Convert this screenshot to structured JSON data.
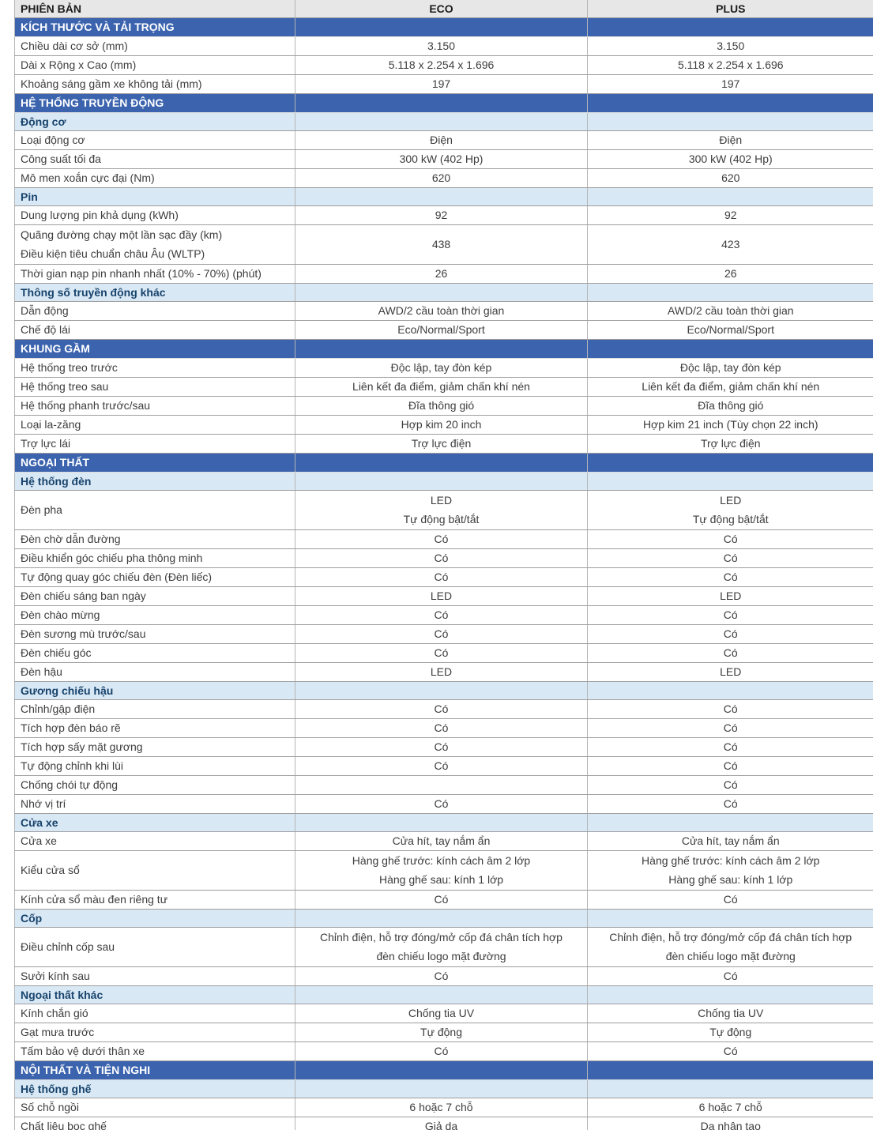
{
  "colors": {
    "section_header_bg": "#3b63ae",
    "section_header_text": "#ffffff",
    "subsection_bg": "#d9e8f5",
    "subsection_text": "#17436b",
    "header_row_bg": "#e7e7e7",
    "row_text": "#3d3d3d",
    "grid_line": "#9e9e9e"
  },
  "table": {
    "columns": [
      "PHIÊN BẢN",
      "ECO",
      "PLUS"
    ],
    "rows": [
      {
        "type": "section",
        "label": "KÍCH THƯỚC VÀ TẢI TRỌNG"
      },
      {
        "type": "data",
        "label": "Chiều dài cơ sở (mm)",
        "eco": "3.150",
        "plus": "3.150"
      },
      {
        "type": "data",
        "label": "Dài x Rộng x Cao (mm)",
        "eco": "5.118 x 2.254 x 1.696",
        "plus": "5.118 x 2.254 x 1.696"
      },
      {
        "type": "data",
        "label": "Khoảng sáng gầm xe không tải (mm)",
        "eco": "197",
        "plus": "197"
      },
      {
        "type": "section",
        "label": "HỆ THỐNG TRUYỀN ĐỘNG"
      },
      {
        "type": "subsection",
        "label": "Động cơ"
      },
      {
        "type": "data",
        "label": "Loại động cơ",
        "eco": "Điện",
        "plus": "Điện"
      },
      {
        "type": "data",
        "label": "Công suất tối đa",
        "eco": "300 kW (402 Hp)",
        "plus": "300 kW (402 Hp)"
      },
      {
        "type": "data",
        "label": "Mô men xoắn cực đại (Nm)",
        "eco": "620",
        "plus": "620"
      },
      {
        "type": "subsection",
        "label": "Pin"
      },
      {
        "type": "data",
        "label": "Dung lượng pin khả dụng (kWh)",
        "eco": "92",
        "plus": "92"
      },
      {
        "type": "data",
        "label": [
          "Quãng đường chạy một lần sạc đầy (km)",
          "Điều kiện tiêu chuẩn châu Âu (WLTP)"
        ],
        "eco": "438",
        "plus": "423"
      },
      {
        "type": "data",
        "label": "Thời gian nạp pin nhanh nhất (10% - 70%) (phút)",
        "eco": "26",
        "plus": "26"
      },
      {
        "type": "subsection",
        "label": "Thông số truyền động khác"
      },
      {
        "type": "data",
        "label": "Dẫn động",
        "eco": "AWD/2 cầu toàn thời gian",
        "plus": "AWD/2 cầu toàn thời gian"
      },
      {
        "type": "data",
        "label": "Chế độ lái",
        "eco": "Eco/Normal/Sport",
        "plus": "Eco/Normal/Sport"
      },
      {
        "type": "section",
        "label": "KHUNG GẦM"
      },
      {
        "type": "data",
        "label": "Hệ thống treo trước",
        "eco": "Độc lập, tay đòn kép",
        "plus": "Độc lập, tay đòn kép"
      },
      {
        "type": "data",
        "label": "Hệ thống treo sau",
        "eco": "Liên kết đa điểm, giảm chấn khí nén",
        "plus": "Liên kết đa điểm, giảm chấn khí nén"
      },
      {
        "type": "data",
        "label": "Hệ thống phanh trước/sau",
        "eco": "Đĩa thông gió",
        "plus": "Đĩa thông gió"
      },
      {
        "type": "data",
        "label": "Loại la-zăng",
        "eco": "Hợp kim 20 inch",
        "plus": "Hợp kim 21 inch (Tùy chọn 22 inch)"
      },
      {
        "type": "data",
        "label": "Trợ lực lái",
        "eco": "Trợ lực điện",
        "plus": "Trợ lực điện"
      },
      {
        "type": "section",
        "label": "NGOẠI THẤT"
      },
      {
        "type": "subsection",
        "label": "Hệ thống đèn"
      },
      {
        "type": "data",
        "label": "Đèn pha",
        "eco": [
          "LED",
          "Tự động bật/tắt"
        ],
        "plus": [
          "LED",
          "Tự động bật/tắt"
        ]
      },
      {
        "type": "data",
        "label": "Đèn chờ dẫn đường",
        "eco": "Có",
        "plus": "Có"
      },
      {
        "type": "data",
        "label": "Điều khiển góc chiếu pha thông minh",
        "eco": "Có",
        "plus": "Có"
      },
      {
        "type": "data",
        "label": "Tự động quay góc chiếu đèn (Đèn liếc)",
        "eco": "Có",
        "plus": "Có"
      },
      {
        "type": "data",
        "label": "Đèn chiếu sáng ban ngày",
        "eco": "LED",
        "plus": "LED"
      },
      {
        "type": "data",
        "label": "Đèn chào mừng",
        "eco": "Có",
        "plus": "Có"
      },
      {
        "type": "data",
        "label": "Đèn sương mù trước/sau",
        "eco": "Có",
        "plus": "Có"
      },
      {
        "type": "data",
        "label": "Đèn chiếu góc",
        "eco": "Có",
        "plus": "Có"
      },
      {
        "type": "data",
        "label": "Đèn hậu",
        "eco": "LED",
        "plus": "LED"
      },
      {
        "type": "subsection",
        "label": "Gương chiếu hậu"
      },
      {
        "type": "data",
        "label": "Chỉnh/gập điện",
        "eco": "Có",
        "plus": "Có"
      },
      {
        "type": "data",
        "label": "Tích hợp đèn báo rẽ",
        "eco": "Có",
        "plus": "Có"
      },
      {
        "type": "data",
        "label": "Tích hợp sấy mặt gương",
        "eco": "Có",
        "plus": "Có"
      },
      {
        "type": "data",
        "label": "Tự động chỉnh khi lùi",
        "eco": "Có",
        "plus": "Có"
      },
      {
        "type": "data",
        "label": "Chống chói tự động",
        "eco": "",
        "plus": "Có"
      },
      {
        "type": "data",
        "label": "Nhớ vị trí",
        "eco": "Có",
        "plus": "Có"
      },
      {
        "type": "subsection",
        "label": "Cửa xe"
      },
      {
        "type": "data",
        "label": "Cửa xe",
        "eco": "Cửa hít, tay nắm ẩn",
        "plus": "Cửa hít, tay nắm ẩn"
      },
      {
        "type": "data",
        "label": "Kiểu cửa sổ",
        "eco": [
          "Hàng ghế trước: kính cách âm 2 lớp",
          "Hàng ghế sau: kính 1 lớp"
        ],
        "plus": [
          "Hàng ghế trước: kính cách âm 2 lớp",
          "Hàng ghế sau: kính 1 lớp"
        ]
      },
      {
        "type": "data",
        "label": "Kính cửa sổ màu đen riêng tư",
        "eco": "Có",
        "plus": "Có"
      },
      {
        "type": "subsection",
        "label": "Cốp"
      },
      {
        "type": "data",
        "label": "Điều chỉnh cốp sau",
        "eco": [
          "Chỉnh điện, hỗ trợ đóng/mở cốp đá chân tích hợp",
          "đèn chiếu logo mặt đường"
        ],
        "plus": [
          "Chỉnh điện, hỗ trợ đóng/mở cốp đá chân tích hợp",
          "đèn chiếu logo mặt đường"
        ]
      },
      {
        "type": "data",
        "label": "Sưởi kính sau",
        "eco": "Có",
        "plus": "Có"
      },
      {
        "type": "subsection",
        "label": "Ngoại thất khác"
      },
      {
        "type": "data",
        "label": "Kính chắn gió",
        "eco": "Chống tia UV",
        "plus": "Chống tia UV"
      },
      {
        "type": "data",
        "label": "Gạt mưa trước",
        "eco": "Tự động",
        "plus": "Tự động"
      },
      {
        "type": "data",
        "label": "Tấm bảo vệ dưới thân xe",
        "eco": "Có",
        "plus": "Có"
      },
      {
        "type": "section",
        "label": "NỘI THẤT VÀ TIỆN NGHI"
      },
      {
        "type": "subsection",
        "label": "Hệ thống ghế"
      },
      {
        "type": "data",
        "label": "Số chỗ ngồi",
        "eco": "6 hoặc 7 chỗ",
        "plus": "6 hoặc 7 chỗ"
      },
      {
        "type": "data",
        "label": "Chất liệu bọc ghế",
        "eco": "Giả da",
        "plus": "Da nhân tạo"
      }
    ]
  }
}
